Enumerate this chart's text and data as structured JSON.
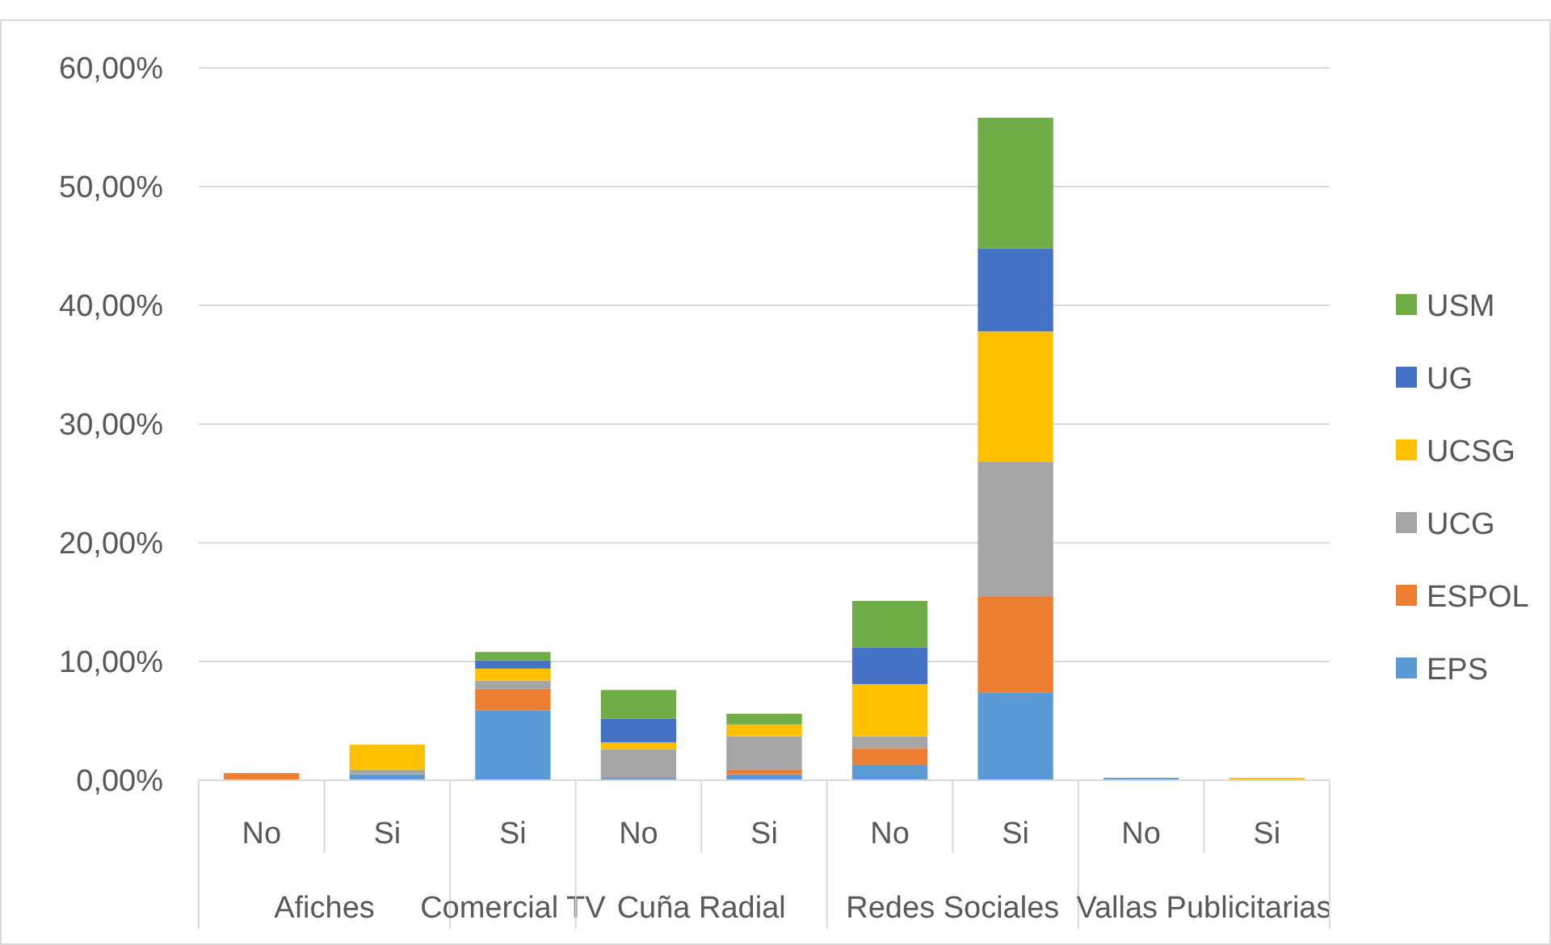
{
  "chart_data": {
    "type": "bar",
    "stacked": true,
    "categories": [
      "No",
      "Si",
      "Si",
      "No",
      "Si",
      "No",
      "Si",
      "No",
      "Si"
    ],
    "annotations": [
      "Afiches",
      "Comercial TV",
      "Cuña Radial",
      "Redes Sociales",
      "Vallas Publicitarias"
    ],
    "series": [
      {
        "name": "EPS",
        "color": "#5b9bd5",
        "values": [
          0,
          0.5,
          5.9,
          0.2,
          0.5,
          1.3,
          7.4,
          0.2,
          0
        ]
      },
      {
        "name": "ESPOL",
        "color": "#ed7d31",
        "values": [
          0.6,
          0,
          1.8,
          0,
          0.4,
          1.4,
          8.1,
          0,
          0
        ]
      },
      {
        "name": "UCG",
        "color": "#a5a5a5",
        "values": [
          0,
          0.4,
          0.7,
          2.4,
          2.8,
          1.0,
          11.3,
          0,
          0
        ]
      },
      {
        "name": "UCSG",
        "color": "#ffc000",
        "values": [
          0,
          2.1,
          1.0,
          0.6,
          1.0,
          4.4,
          11.0,
          0,
          0.2
        ]
      },
      {
        "name": "UG",
        "color": "#4472c4",
        "values": [
          0,
          0,
          0.7,
          2.0,
          0,
          3.1,
          7.0,
          0,
          0
        ]
      },
      {
        "name": "USM",
        "color": "#70ad47",
        "values": [
          0,
          0,
          0.7,
          2.4,
          0.9,
          3.9,
          11.0,
          0,
          0
        ]
      }
    ],
    "ylim": [
      0,
      60
    ],
    "yticks": [
      {
        "value": 0,
        "label": "0,00%"
      },
      {
        "value": 10,
        "label": "10,00%"
      },
      {
        "value": 20,
        "label": "20,00%"
      },
      {
        "value": 30,
        "label": "30,00%"
      },
      {
        "value": 40,
        "label": "40,00%"
      },
      {
        "value": 50,
        "label": "50,00%"
      },
      {
        "value": 60,
        "label": "60,00%"
      }
    ],
    "grid": "y",
    "legend": "right"
  }
}
